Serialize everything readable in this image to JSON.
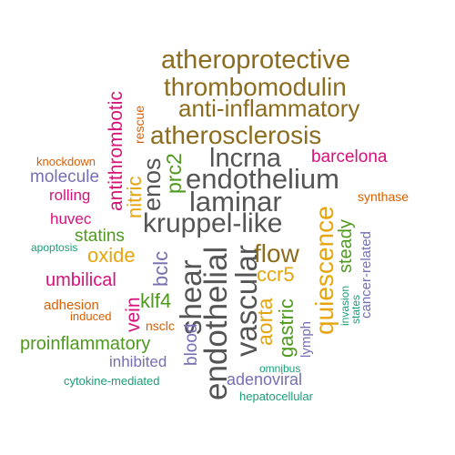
{
  "words": {
    "atheroprotective": {
      "text": "atheroprotective",
      "color": "#8c6d1f"
    },
    "thrombomodulin": {
      "text": "thrombomodulin",
      "color": "#8c6d1f"
    },
    "anti_inflammatory": {
      "text": "anti-inflammatory",
      "color": "#8c6d1f"
    },
    "atherosclerosis": {
      "text": "atherosclerosis",
      "color": "#8c6d1f"
    },
    "lncrna": {
      "text": "lncrna",
      "color": "#555555"
    },
    "barcelona": {
      "text": "barcelona",
      "color": "#d6117a"
    },
    "endothelium": {
      "text": "endothelium",
      "color": "#555555"
    },
    "laminar": {
      "text": "laminar",
      "color": "#555555"
    },
    "kruppel_like": {
      "text": "kruppel-like",
      "color": "#555555"
    },
    "flow": {
      "text": "flow",
      "color": "#8c6d1f"
    },
    "ccr5": {
      "text": "ccr5",
      "color": "#e6a50e"
    },
    "knockdown": {
      "text": "knockdown",
      "color": "#d95f02"
    },
    "molecule": {
      "text": "molecule",
      "color": "#7570b3"
    },
    "rolling": {
      "text": "rolling",
      "color": "#d6117a"
    },
    "huvec": {
      "text": "huvec",
      "color": "#d6117a"
    },
    "statins": {
      "text": "statins",
      "color": "#4e9a1f"
    },
    "apoptosis": {
      "text": "apoptosis",
      "color": "#1b9e77"
    },
    "oxide": {
      "text": "oxide",
      "color": "#e6a50e"
    },
    "umbilical": {
      "text": "umbilical",
      "color": "#d6117a"
    },
    "klf4": {
      "text": "klf4",
      "color": "#4e9a1f"
    },
    "adhesion": {
      "text": "adhesion",
      "color": "#d95f02"
    },
    "induced": {
      "text": "induced",
      "color": "#d95f02"
    },
    "nsclc": {
      "text": "nsclc",
      "color": "#d95f02"
    },
    "proinflammatory": {
      "text": "proinflammatory",
      "color": "#4e9a1f"
    },
    "inhibited": {
      "text": "inhibited",
      "color": "#7570b3"
    },
    "cytokine_mediated": {
      "text": "cytokine-mediated",
      "color": "#1b9e77"
    },
    "synthase": {
      "text": "synthase",
      "color": "#d95f02"
    },
    "omnibus": {
      "text": "omnibus",
      "color": "#1b9e77"
    },
    "adenoviral": {
      "text": "adenoviral",
      "color": "#7570b3"
    },
    "hepatocellular": {
      "text": "hepatocellular",
      "color": "#1b9e77"
    },
    "antithrombotic": {
      "text": "antithrombotic",
      "color": "#d6117a"
    },
    "rescue": {
      "text": "rescue",
      "color": "#d95f02"
    },
    "prc2": {
      "text": "prc2",
      "color": "#4e9a1f"
    },
    "enos": {
      "text": "enos",
      "color": "#555555"
    },
    "nitric": {
      "text": "nitric",
      "color": "#e6a50e"
    },
    "bclc": {
      "text": "bclc",
      "color": "#7570b3"
    },
    "vein": {
      "text": "vein",
      "color": "#d6117a"
    },
    "shear": {
      "text": "shear",
      "color": "#555555"
    },
    "endothelial": {
      "text": "endothelial",
      "color": "#555555"
    },
    "blood": {
      "text": "blood",
      "color": "#7570b3"
    },
    "vascular": {
      "text": "vascular",
      "color": "#555555"
    },
    "aorta": {
      "text": "aorta",
      "color": "#e6a50e"
    },
    "gastric": {
      "text": "gastric",
      "color": "#4e9a1f"
    },
    "lymph": {
      "text": "lymph",
      "color": "#7570b3"
    },
    "quiescence": {
      "text": "quiescence",
      "color": "#e6a50e"
    },
    "steady": {
      "text": "steady",
      "color": "#4e9a1f"
    },
    "invasion": {
      "text": "invasion",
      "color": "#1b9e77"
    },
    "states": {
      "text": "states",
      "color": "#1b9e77"
    },
    "cancer_related": {
      "text": "cancer-related",
      "color": "#7570b3"
    }
  }
}
